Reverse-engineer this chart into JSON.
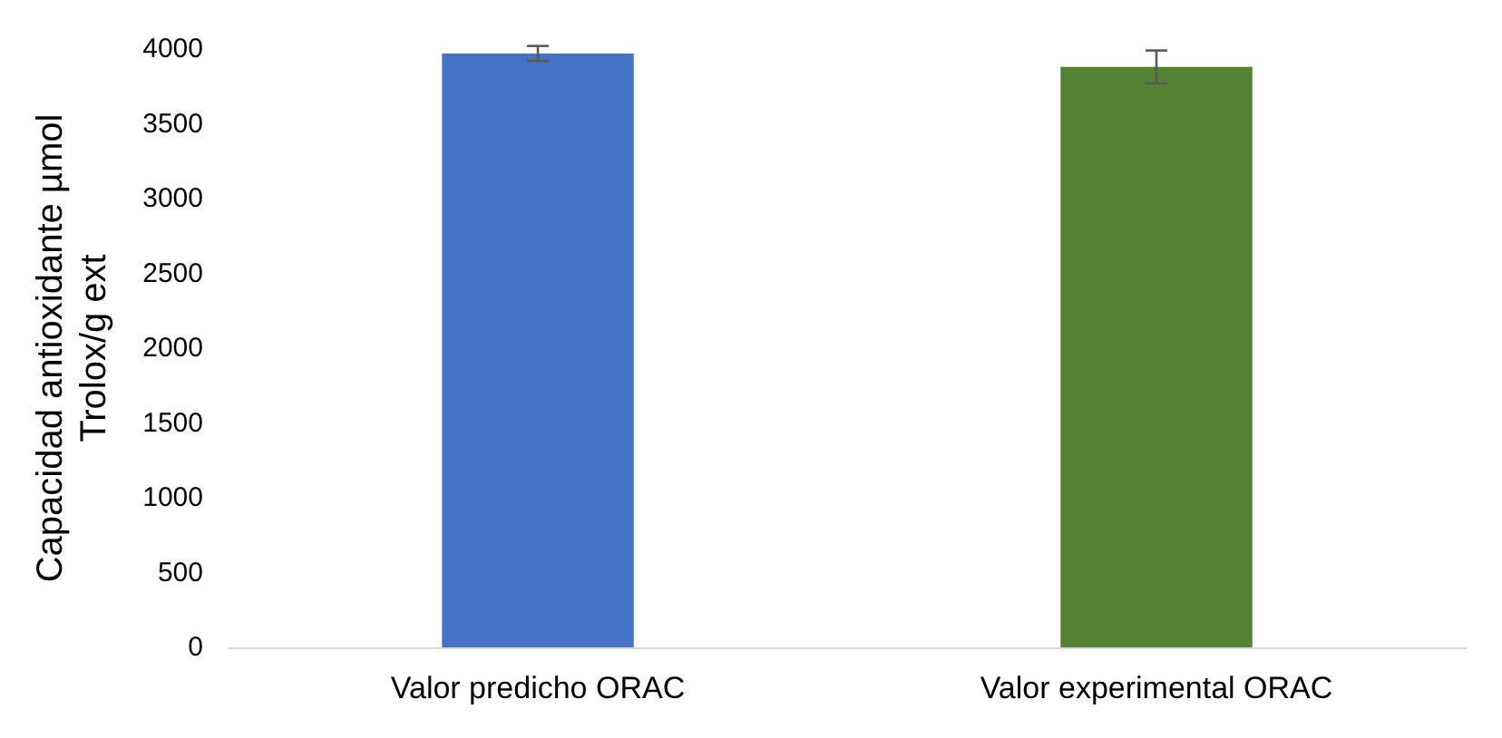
{
  "chart_data": {
    "type": "bar",
    "ylabel": "Capacidad antioxidante µmol\nTrolox/g ext",
    "categories": [
      "Valor predicho ORAC",
      "Valor experimental ORAC"
    ],
    "values": [
      3970,
      3880
    ],
    "colors": [
      "#4472c4",
      "#548235"
    ],
    "errors": [
      50,
      110
    ],
    "ylim": [
      0,
      4000
    ],
    "yticks": [
      0,
      500,
      1000,
      1500,
      2000,
      2500,
      3000,
      3500,
      4000
    ],
    "grid": false
  }
}
